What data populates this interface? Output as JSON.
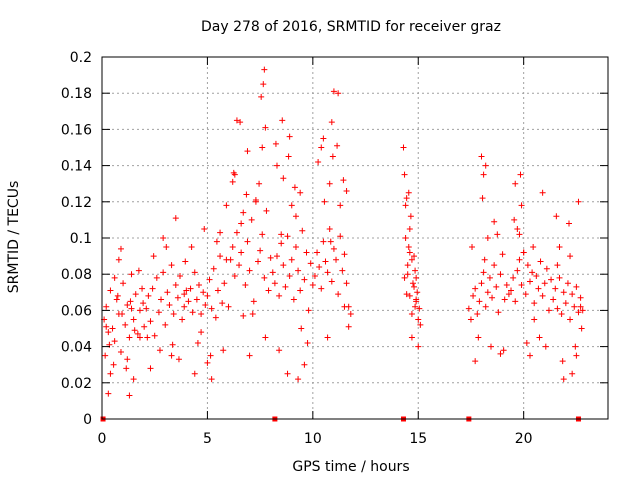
{
  "chart_data": {
    "type": "scatter",
    "title": "Day 278 of 2016, SRMTID for receiver graz",
    "xlabel": "GPS time / hours",
    "ylabel": "SRMTID / TECUs",
    "xlim": [
      0,
      24
    ],
    "ylim": [
      0,
      0.2
    ],
    "x_ticks": [
      0,
      5,
      10,
      15,
      20
    ],
    "x_tick_labels": [
      "0",
      "5",
      "10",
      "15",
      "20"
    ],
    "y_ticks": [
      0,
      0.02,
      0.04,
      0.06,
      0.08,
      0.1,
      0.12,
      0.14,
      0.16,
      0.18,
      0.2
    ],
    "y_tick_labels": [
      "0",
      "0.02",
      "0.04",
      "0.06",
      "0.08",
      "0.1",
      "0.12",
      "0.14",
      "0.16",
      "0.18",
      "0.2"
    ],
    "grid": true,
    "marker": "+",
    "color": "#ff0000",
    "zero_markers_x": [
      0.05,
      8.2,
      14.3,
      17.4,
      22.6
    ],
    "series": [
      {
        "name": "SRMTID",
        "x": [
          0.1,
          0.2,
          0.3,
          0.4,
          0.5,
          0.6,
          0.7,
          0.8,
          0.9,
          1.0,
          1.1,
          1.2,
          1.3,
          1.4,
          1.5,
          1.6,
          1.7,
          1.8,
          1.9,
          2.0,
          0.15,
          0.35,
          0.55,
          0.75,
          0.95,
          1.15,
          1.35,
          1.55,
          1.75,
          1.95,
          0.3,
          0.6,
          0.9,
          1.2,
          1.5,
          1.8,
          0.2,
          0.8,
          1.4,
          0.4,
          1.3,
          2.1,
          2.2,
          2.3,
          2.4,
          2.5,
          2.6,
          2.7,
          2.8,
          2.9,
          3.0,
          3.1,
          3.2,
          3.3,
          3.4,
          3.5,
          3.6,
          3.7,
          3.8,
          3.9,
          4.0,
          2.15,
          2.45,
          2.75,
          3.05,
          3.35,
          3.65,
          3.95,
          2.3,
          2.9,
          3.5,
          3.3,
          3.9,
          4.1,
          4.2,
          4.3,
          4.4,
          4.5,
          4.6,
          4.7,
          4.8,
          4.9,
          5.0,
          5.1,
          5.2,
          5.3,
          5.4,
          5.5,
          5.6,
          5.7,
          5.8,
          5.9,
          6.0,
          4.25,
          4.55,
          4.85,
          5.15,
          5.45,
          5.75,
          4.4,
          5.0,
          5.6,
          4.7,
          5.9,
          5.2,
          6.1,
          6.2,
          6.3,
          6.4,
          6.5,
          6.6,
          6.7,
          6.8,
          6.9,
          7.0,
          7.1,
          7.2,
          7.3,
          7.4,
          7.5,
          7.6,
          7.7,
          7.8,
          7.9,
          8.0,
          6.25,
          6.55,
          6.85,
          7.15,
          7.45,
          7.75,
          6.4,
          7.0,
          7.6,
          6.3,
          6.6,
          6.9,
          7.3,
          7.55,
          7.65,
          7.7,
          7.75,
          6.2,
          6.7,
          8.1,
          8.2,
          8.3,
          8.4,
          8.5,
          8.6,
          8.7,
          8.8,
          8.9,
          9.0,
          9.1,
          9.2,
          9.3,
          9.4,
          9.5,
          9.6,
          9.7,
          9.8,
          9.9,
          10.0,
          8.25,
          8.55,
          8.85,
          9.15,
          9.45,
          9.75,
          8.4,
          9.0,
          9.6,
          8.3,
          8.6,
          8.9,
          9.2,
          9.4,
          9.3,
          8.5,
          8.8,
          10.1,
          10.2,
          10.3,
          10.4,
          10.5,
          10.6,
          10.7,
          10.8,
          10.9,
          11.0,
          11.1,
          11.2,
          11.3,
          11.4,
          11.5,
          11.6,
          11.7,
          11.8,
          10.25,
          10.55,
          10.85,
          11.15,
          11.45,
          10.4,
          11.0,
          11.6,
          10.5,
          10.8,
          11.2,
          10.9,
          10.95,
          11.3,
          10.7,
          11.5,
          11.7,
          14.3,
          14.35,
          14.4,
          14.45,
          14.5,
          14.55,
          14.6,
          14.65,
          14.7,
          14.75,
          14.8,
          14.85,
          14.9,
          14.95,
          15.0,
          15.05,
          15.1,
          14.4,
          14.5,
          14.6,
          14.7,
          14.8,
          14.9,
          15.0,
          14.35,
          14.6,
          14.85,
          14.45,
          14.55,
          14.7,
          14.9,
          17.4,
          17.5,
          17.6,
          17.7,
          17.8,
          17.9,
          18.0,
          18.1,
          18.2,
          18.3,
          18.4,
          18.5,
          18.6,
          18.7,
          18.8,
          18.9,
          19.0,
          19.1,
          19.2,
          19.3,
          17.55,
          17.85,
          18.15,
          18.45,
          18.75,
          19.05,
          17.7,
          18.3,
          18.9,
          18.0,
          18.1,
          18.2,
          18.05,
          18.6,
          19.4,
          19.5,
          19.6,
          19.7,
          19.8,
          19.9,
          20.0,
          20.1,
          20.2,
          20.3,
          20.4,
          20.5,
          20.6,
          20.7,
          20.8,
          20.9,
          21.0,
          21.1,
          21.2,
          21.3,
          19.55,
          19.85,
          20.15,
          20.45,
          20.75,
          21.05,
          19.7,
          20.3,
          20.9,
          19.6,
          19.9,
          19.8,
          20.0,
          20.5,
          21.4,
          21.5,
          21.6,
          21.7,
          21.8,
          21.9,
          22.0,
          22.1,
          22.2,
          22.3,
          22.4,
          22.5,
          22.6,
          22.7,
          22.8,
          21.55,
          21.85,
          22.15,
          22.45,
          22.75,
          21.7,
          22.3,
          22.6,
          21.6,
          21.9,
          22.2,
          22.5,
          22.7
        ],
        "y": [
          0.055,
          0.062,
          0.048,
          0.071,
          0.05,
          0.043,
          0.066,
          0.058,
          0.037,
          0.075,
          0.052,
          0.063,
          0.045,
          0.08,
          0.055,
          0.069,
          0.047,
          0.06,
          0.072,
          0.051,
          0.035,
          0.041,
          0.03,
          0.068,
          0.058,
          0.028,
          0.065,
          0.049,
          0.082,
          0.064,
          0.014,
          0.078,
          0.094,
          0.033,
          0.022,
          0.045,
          0.051,
          0.088,
          0.061,
          0.025,
          0.013,
          0.061,
          0.068,
          0.054,
          0.072,
          0.046,
          0.078,
          0.059,
          0.066,
          0.081,
          0.052,
          0.07,
          0.063,
          0.085,
          0.058,
          0.074,
          0.067,
          0.079,
          0.055,
          0.062,
          0.071,
          0.045,
          0.09,
          0.038,
          0.095,
          0.041,
          0.033,
          0.087,
          0.028,
          0.1,
          0.111,
          0.035,
          0.069,
          0.065,
          0.072,
          0.059,
          0.081,
          0.066,
          0.074,
          0.058,
          0.07,
          0.063,
          0.068,
          0.077,
          0.061,
          0.083,
          0.056,
          0.071,
          0.09,
          0.064,
          0.075,
          0.088,
          0.062,
          0.095,
          0.042,
          0.105,
          0.035,
          0.098,
          0.038,
          0.025,
          0.031,
          0.103,
          0.048,
          0.118,
          0.022,
          0.088,
          0.095,
          0.079,
          0.103,
          0.085,
          0.092,
          0.114,
          0.074,
          0.098,
          0.082,
          0.11,
          0.065,
          0.121,
          0.087,
          0.093,
          0.102,
          0.078,
          0.115,
          0.071,
          0.089,
          0.136,
          0.164,
          0.124,
          0.058,
          0.13,
          0.045,
          0.165,
          0.035,
          0.15,
          0.135,
          0.108,
          0.148,
          0.12,
          0.178,
          0.185,
          0.193,
          0.161,
          0.131,
          0.057,
          0.081,
          0.075,
          0.09,
          0.068,
          0.097,
          0.085,
          0.073,
          0.101,
          0.079,
          0.088,
          0.066,
          0.095,
          0.082,
          0.071,
          0.104,
          0.077,
          0.092,
          0.06,
          0.086,
          0.074,
          0.152,
          0.165,
          0.145,
          0.128,
          0.05,
          0.042,
          0.038,
          0.118,
          0.03,
          0.14,
          0.133,
          0.156,
          0.112,
          0.125,
          0.022,
          0.102,
          0.025,
          0.079,
          0.092,
          0.084,
          0.072,
          0.098,
          0.087,
          0.081,
          0.105,
          0.076,
          0.094,
          0.088,
          0.069,
          0.101,
          0.082,
          0.091,
          0.075,
          0.062,
          0.058,
          0.142,
          0.12,
          0.098,
          0.151,
          0.132,
          0.15,
          0.181,
          0.126,
          0.155,
          0.13,
          0.18,
          0.164,
          0.145,
          0.118,
          0.045,
          0.062,
          0.051,
          0.15,
          0.078,
          0.1,
          0.122,
          0.085,
          0.095,
          0.068,
          0.112,
          0.058,
          0.075,
          0.09,
          0.062,
          0.065,
          0.07,
          0.055,
          0.061,
          0.052,
          0.118,
          0.08,
          0.105,
          0.088,
          0.073,
          0.066,
          0.04,
          0.135,
          0.092,
          0.082,
          0.069,
          0.125,
          0.045,
          0.078,
          0.061,
          0.055,
          0.068,
          0.072,
          0.058,
          0.065,
          0.075,
          0.081,
          0.062,
          0.07,
          0.078,
          0.067,
          0.085,
          0.073,
          0.059,
          0.08,
          0.091,
          0.066,
          0.074,
          0.069,
          0.095,
          0.045,
          0.088,
          0.04,
          0.102,
          0.038,
          0.032,
          0.1,
          0.036,
          0.145,
          0.135,
          0.14,
          0.122,
          0.109,
          0.071,
          0.078,
          0.065,
          0.082,
          0.088,
          0.074,
          0.092,
          0.069,
          0.085,
          0.076,
          0.081,
          0.064,
          0.079,
          0.072,
          0.087,
          0.068,
          0.075,
          0.083,
          0.06,
          0.077,
          0.11,
          0.135,
          0.042,
          0.095,
          0.045,
          0.04,
          0.105,
          0.035,
          0.125,
          0.13,
          0.118,
          0.102,
          0.092,
          0.055,
          0.066,
          0.072,
          0.061,
          0.078,
          0.058,
          0.07,
          0.064,
          0.075,
          0.055,
          0.069,
          0.062,
          0.073,
          0.059,
          0.067,
          0.06,
          0.112,
          0.032,
          0.108,
          0.04,
          0.05,
          0.095,
          0.025,
          0.12,
          0.085,
          0.022,
          0.09,
          0.035,
          0.062
        ]
      }
    ]
  }
}
